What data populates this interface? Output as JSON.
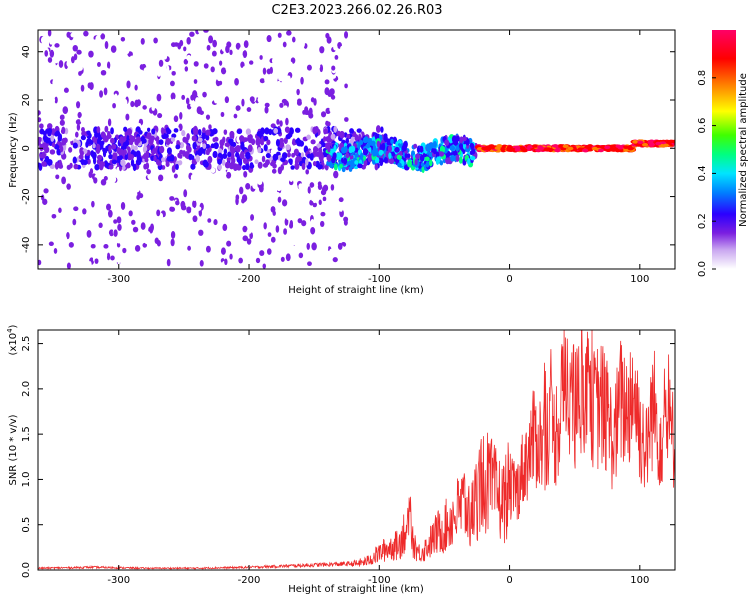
{
  "title": "C2E3.2023.266.02.26.R03",
  "colors": {
    "snr_line": "#ee2a2a",
    "axis": "#000000"
  },
  "chart_data": [
    {
      "type": "heatmap",
      "xlabel": "Height of straight line (km)",
      "ylabel": "Frequency (Hz)",
      "xlim": [
        -362,
        127
      ],
      "ylim": [
        -50,
        49
      ],
      "xticks": [
        -300,
        -200,
        -100,
        0,
        100
      ],
      "xtick_labels": [
        "-300",
        "-200",
        "-100",
        "0",
        "100"
      ],
      "yticks": [
        -40,
        -20,
        0,
        20,
        40
      ],
      "ytick_labels": [
        "-40",
        "-20",
        "0",
        "20",
        "40"
      ],
      "grid": false,
      "colorbar": {
        "label": "Normalized spectral amplitude",
        "range": [
          0,
          1
        ],
        "ticks": [
          0.0,
          0.2,
          0.4,
          0.6,
          0.8
        ],
        "tick_labels": [
          "0.0",
          "0.2",
          "0.4",
          "0.6",
          "0.8"
        ],
        "colormap": [
          "#ffffff",
          "#c9a6f0",
          "#7b1fe0",
          "#2b00ff",
          "#0080ff",
          "#00e5ff",
          "#00ff80",
          "#40ff00",
          "#ffff00",
          "#ff8000",
          "#ff0000",
          "#ff0066"
        ]
      },
      "regions": [
        {
          "name": "noise",
          "x_range": [
            -362,
            -125
          ],
          "freq_spread": 49,
          "amplitude": 0.15
        },
        {
          "name": "band",
          "x_range": [
            -362,
            -95
          ],
          "freq_center": 0,
          "freq_spread": 8,
          "amplitude": 0.25
        },
        {
          "name": "wavy",
          "x_range": [
            -140,
            -25
          ],
          "freq_center": -2,
          "freq_spread": 5,
          "amplitude": 0.4
        },
        {
          "name": "line",
          "x_range": [
            -25,
            95
          ],
          "freq_center": 0,
          "freq_spread": 1,
          "amplitude": 0.95
        },
        {
          "name": "line_high",
          "x_range": [
            95,
            127
          ],
          "freq_center": 2,
          "freq_spread": 1,
          "amplitude": 0.95
        }
      ]
    },
    {
      "type": "line",
      "xlabel": "Height of straight line (km)",
      "ylabel": "SNR (10 * v/v)",
      "y_multiplier_label": "(x10",
      "y_multiplier_exp": "4",
      "y_multiplier_close": ")",
      "xlim": [
        -362,
        127
      ],
      "ylim": [
        0,
        26500
      ],
      "xticks": [
        -300,
        -200,
        -100,
        0,
        100
      ],
      "xtick_labels": [
        "-300",
        "-200",
        "-100",
        "0",
        "100"
      ],
      "yticks": [
        0,
        5000,
        10000,
        15000,
        20000,
        25000
      ],
      "ytick_labels": [
        "0.0",
        "0.5",
        "1.0",
        "1.5",
        "2.0",
        "2.5"
      ],
      "grid": false,
      "series": [
        {
          "x": [
            -362,
            -340,
            -320,
            -300,
            -280,
            -260,
            -240,
            -220,
            -200,
            -180,
            -160,
            -140,
            -120,
            -110,
            -100,
            -95,
            -90,
            -85,
            -80,
            -75,
            -70,
            -65,
            -60,
            -55,
            -50,
            -45,
            -40,
            -35,
            -30,
            -25,
            -20,
            -15,
            -10,
            -5,
            0,
            5,
            10,
            15,
            20,
            25,
            30,
            35,
            40,
            45,
            50,
            55,
            60,
            65,
            70,
            75,
            80,
            85,
            90,
            95,
            100,
            105,
            110,
            115,
            120,
            127
          ],
          "y": [
            200,
            250,
            300,
            250,
            200,
            200,
            200,
            250,
            300,
            400,
            500,
            600,
            700,
            1000,
            2000,
            2500,
            2800,
            3000,
            5000,
            4000,
            2000,
            2500,
            3500,
            4500,
            5000,
            6000,
            7000,
            8000,
            6000,
            9000,
            11000,
            10000,
            9000,
            8000,
            10000,
            9000,
            12000,
            14000,
            16000,
            15000,
            17000,
            16000,
            20000,
            24000,
            18000,
            22000,
            25000,
            19000,
            20000,
            18000,
            15000,
            20000,
            19000,
            22000,
            17000,
            14000,
            20000,
            16000,
            18000,
            15000
          ],
          "peak_ranges": [
            [
              -85,
              -75,
              8200
            ],
            [
              -35,
              -20,
              5800
            ],
            [
              50,
              60,
              26500
            ],
            [
              5,
              60,
              25000
            ],
            [
              60,
              127,
              24000
            ]
          ]
        }
      ]
    }
  ]
}
